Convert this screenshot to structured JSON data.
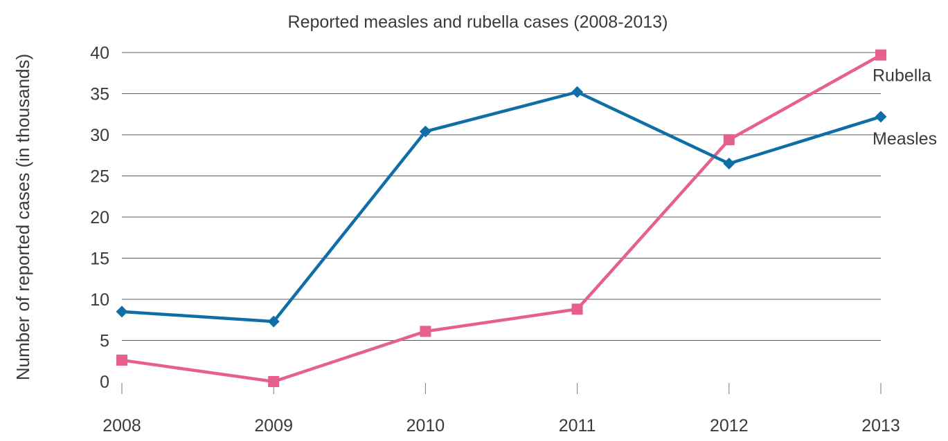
{
  "chart_data": {
    "type": "line",
    "title": "Reported measles and rubella cases (2008-2013)",
    "xlabel": "",
    "ylabel": "Number of reported cases (in thousands)",
    "categories": [
      "2008",
      "2009",
      "2010",
      "2011",
      "2012",
      "2013"
    ],
    "ylim": [
      0,
      40
    ],
    "yticks": [
      "0",
      "5",
      "10",
      "15",
      "20",
      "25",
      "30",
      "35",
      "40"
    ],
    "grid": true,
    "series": [
      {
        "name": "Rubella",
        "color": "#e5608a",
        "marker": "square",
        "values": [
          2.6,
          0.0,
          6.1,
          8.8,
          29.4,
          39.7
        ]
      },
      {
        "name": "Measles",
        "color": "#0f6ea5",
        "marker": "diamond",
        "values": [
          8.5,
          7.3,
          30.4,
          35.2,
          26.5,
          32.2
        ]
      }
    ]
  }
}
